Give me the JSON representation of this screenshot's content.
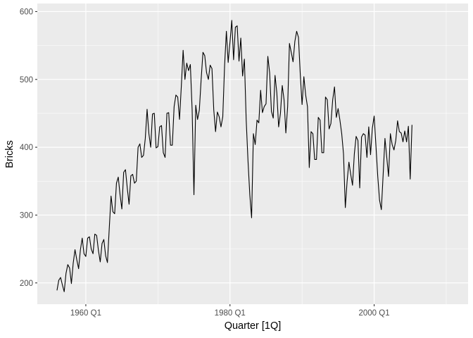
{
  "chart_data": {
    "type": "line",
    "title": "",
    "xlabel": "Quarter [1Q]",
    "ylabel": "Bricks",
    "series_name": "Bricks",
    "x_start_year": 1956,
    "x_start_quarter": 1,
    "points_per_year": 4,
    "x_domain_years": [
      1953.27,
      2013.03
    ],
    "y_domain": [
      168.6,
      611.9
    ],
    "x_ticks": [
      {
        "label": "1960 Q1",
        "year": 1960
      },
      {
        "label": "1980 Q1",
        "year": 1980
      },
      {
        "label": "2000 Q1",
        "year": 2000
      }
    ],
    "x_minor_years": [
      1970,
      1990,
      2010
    ],
    "y_ticks": [
      {
        "label": "200",
        "value": 200
      },
      {
        "label": "300",
        "value": 300
      },
      {
        "label": "400",
        "value": 400
      },
      {
        "label": "500",
        "value": 500
      },
      {
        "label": "600",
        "value": 600
      }
    ],
    "y_minor_values": [
      250,
      350,
      450,
      550
    ],
    "grid": "major-and-minor",
    "legend_position": "none",
    "colors": {
      "panel_background": "#EBEBEB",
      "grid_major": "#FFFFFF",
      "grid_minor": "#FFFFFF",
      "line": "#000000",
      "tick_mark": "#333333",
      "tick_label": "#4D4D4D",
      "axis_title": "#000000",
      "figure_background": "#FFFFFF"
    },
    "values": [
      189,
      204,
      208,
      197,
      187,
      214,
      227,
      222,
      199,
      229,
      249,
      234,
      221,
      249,
      266,
      243,
      239,
      266,
      268,
      250,
      243,
      272,
      270,
      248,
      231,
      258,
      264,
      240,
      230,
      280,
      328,
      305,
      302,
      347,
      356,
      330,
      309,
      363,
      367,
      340,
      316,
      358,
      360,
      347,
      350,
      400,
      405,
      385,
      388,
      413,
      456,
      420,
      400,
      449,
      450,
      399,
      401,
      430,
      432,
      392,
      385,
      450,
      451,
      403,
      403,
      460,
      477,
      474,
      441,
      490,
      543,
      500,
      524,
      513,
      522,
      455,
      330,
      462,
      441,
      455,
      500,
      540,
      535,
      510,
      500,
      521,
      516,
      455,
      423,
      452,
      445,
      430,
      445,
      520,
      571,
      525,
      555,
      587,
      529,
      577,
      579,
      527,
      561,
      505,
      530,
      440,
      380,
      330,
      296,
      420,
      404,
      440,
      436,
      484,
      451,
      460,
      464,
      534,
      510,
      453,
      443,
      506,
      480,
      430,
      450,
      491,
      470,
      421,
      460,
      553,
      540,
      526,
      556,
      571,
      562,
      508,
      463,
      504,
      477,
      460,
      370,
      423,
      420,
      382,
      382,
      444,
      440,
      392,
      392,
      474,
      470,
      427,
      435,
      470,
      489,
      444,
      457,
      440,
      420,
      390,
      311,
      350,
      378,
      360,
      344,
      390,
      416,
      410,
      340,
      415,
      420,
      418,
      385,
      430,
      389,
      428,
      446,
      402,
      357,
      322,
      308,
      360,
      413,
      385,
      357,
      420,
      404,
      396,
      410,
      439,
      423,
      421,
      408,
      424,
      408,
      431,
      353,
      433
    ]
  }
}
